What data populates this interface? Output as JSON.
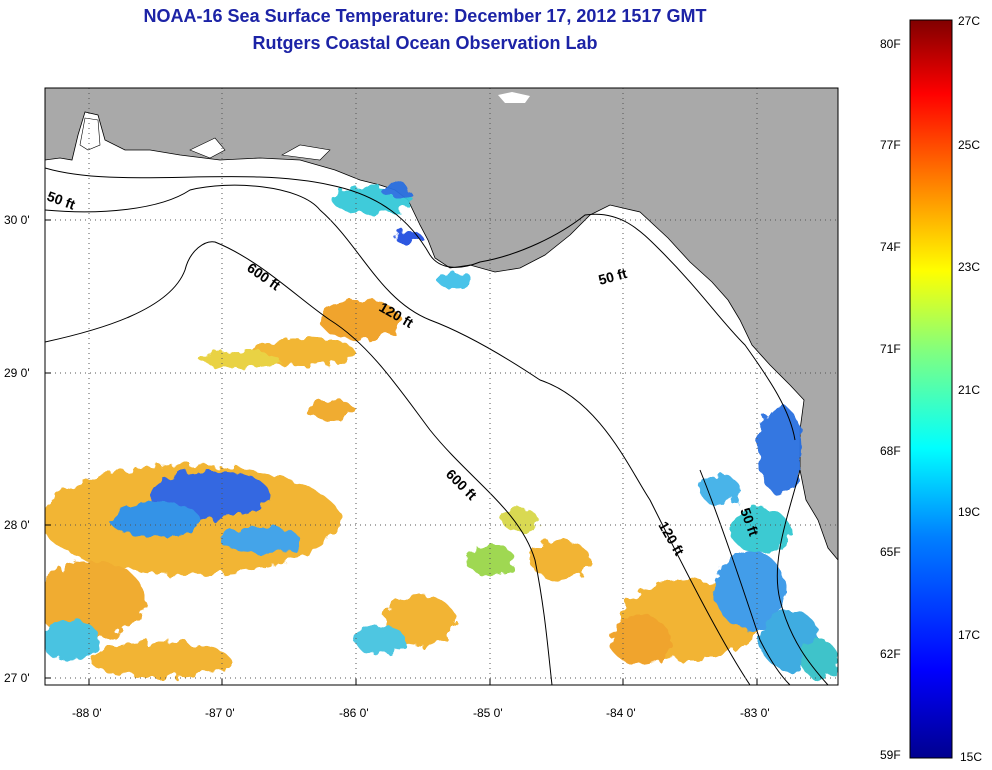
{
  "title": {
    "line1": "NOAA-16 Sea Surface Temperature:  December 17, 2012 1517 GMT",
    "line2": "Rutgers Coastal Ocean Observation Lab"
  },
  "map": {
    "lon_ticks": [
      "-88 0'",
      "-87 0'",
      "-86 0'",
      "-85 0'",
      "-84 0'",
      "-83 0'"
    ],
    "lat_ticks": [
      "30 0'",
      "29 0'",
      "28 0'",
      "27 0'"
    ],
    "contours": [
      {
        "label": "50 ft",
        "depth_ft": 50
      },
      {
        "label": "600 ft",
        "depth_ft": 600
      },
      {
        "label": "120 ft",
        "depth_ft": 120
      },
      {
        "label": "50 ft",
        "depth_ft": 50
      },
      {
        "label": "600 ft",
        "depth_ft": 600
      },
      {
        "label": "120 ft",
        "depth_ft": 120
      },
      {
        "label": "50 ft",
        "depth_ft": 50
      }
    ],
    "colors": {
      "land": "#a9a9a9",
      "ocean_nodata": "#ffffff",
      "contour": "#000000",
      "title": "#1c23a6"
    }
  },
  "colorbar": {
    "fahrenheit": [
      "80F",
      "77F",
      "74F",
      "71F",
      "68F",
      "65F",
      "62F",
      "59F"
    ],
    "celsius": [
      "27C",
      "25C",
      "23C",
      "21C",
      "19C",
      "17C",
      "15C"
    ],
    "range_c": [
      15,
      27
    ],
    "gradient": [
      "#00008f",
      "#0000ff",
      "#0080ff",
      "#00ffff",
      "#80ff80",
      "#ffff00",
      "#ff8000",
      "#ff0000",
      "#800000"
    ]
  }
}
